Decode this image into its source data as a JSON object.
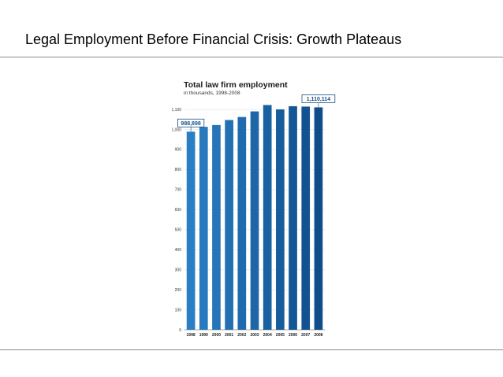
{
  "slide": {
    "title": "Legal Employment Before Financial Crisis: Growth Plateaus"
  },
  "chart_data": {
    "type": "bar",
    "title": "Total law firm employment",
    "subtitle": "in thousands, 1998-2008",
    "categories": [
      "1998",
      "1999",
      "2000",
      "2001",
      "2002",
      "2003",
      "2004",
      "2005",
      "2006",
      "2007",
      "2008"
    ],
    "values": [
      988.898,
      1013,
      1022,
      1047,
      1062,
      1090,
      1122,
      1100,
      1116,
      1114,
      1110.114
    ],
    "ylim": [
      0,
      1100
    ],
    "yticks": [
      0,
      100,
      200,
      300,
      400,
      500,
      600,
      700,
      800,
      900,
      1000,
      1100
    ],
    "ytick_labels": [
      "0",
      "100",
      "200",
      "300",
      "400",
      "500",
      "600",
      "700",
      "800",
      "900",
      "1,000",
      "1,100"
    ],
    "grid": true,
    "callouts": [
      {
        "category": "1998",
        "label": "988,898"
      },
      {
        "category": "2008",
        "label": "1,110,114"
      }
    ],
    "colors": {
      "bar_start": "#2a7fc4",
      "bar_end": "#0f4d8a",
      "callout_border": "#1a4f86"
    }
  }
}
